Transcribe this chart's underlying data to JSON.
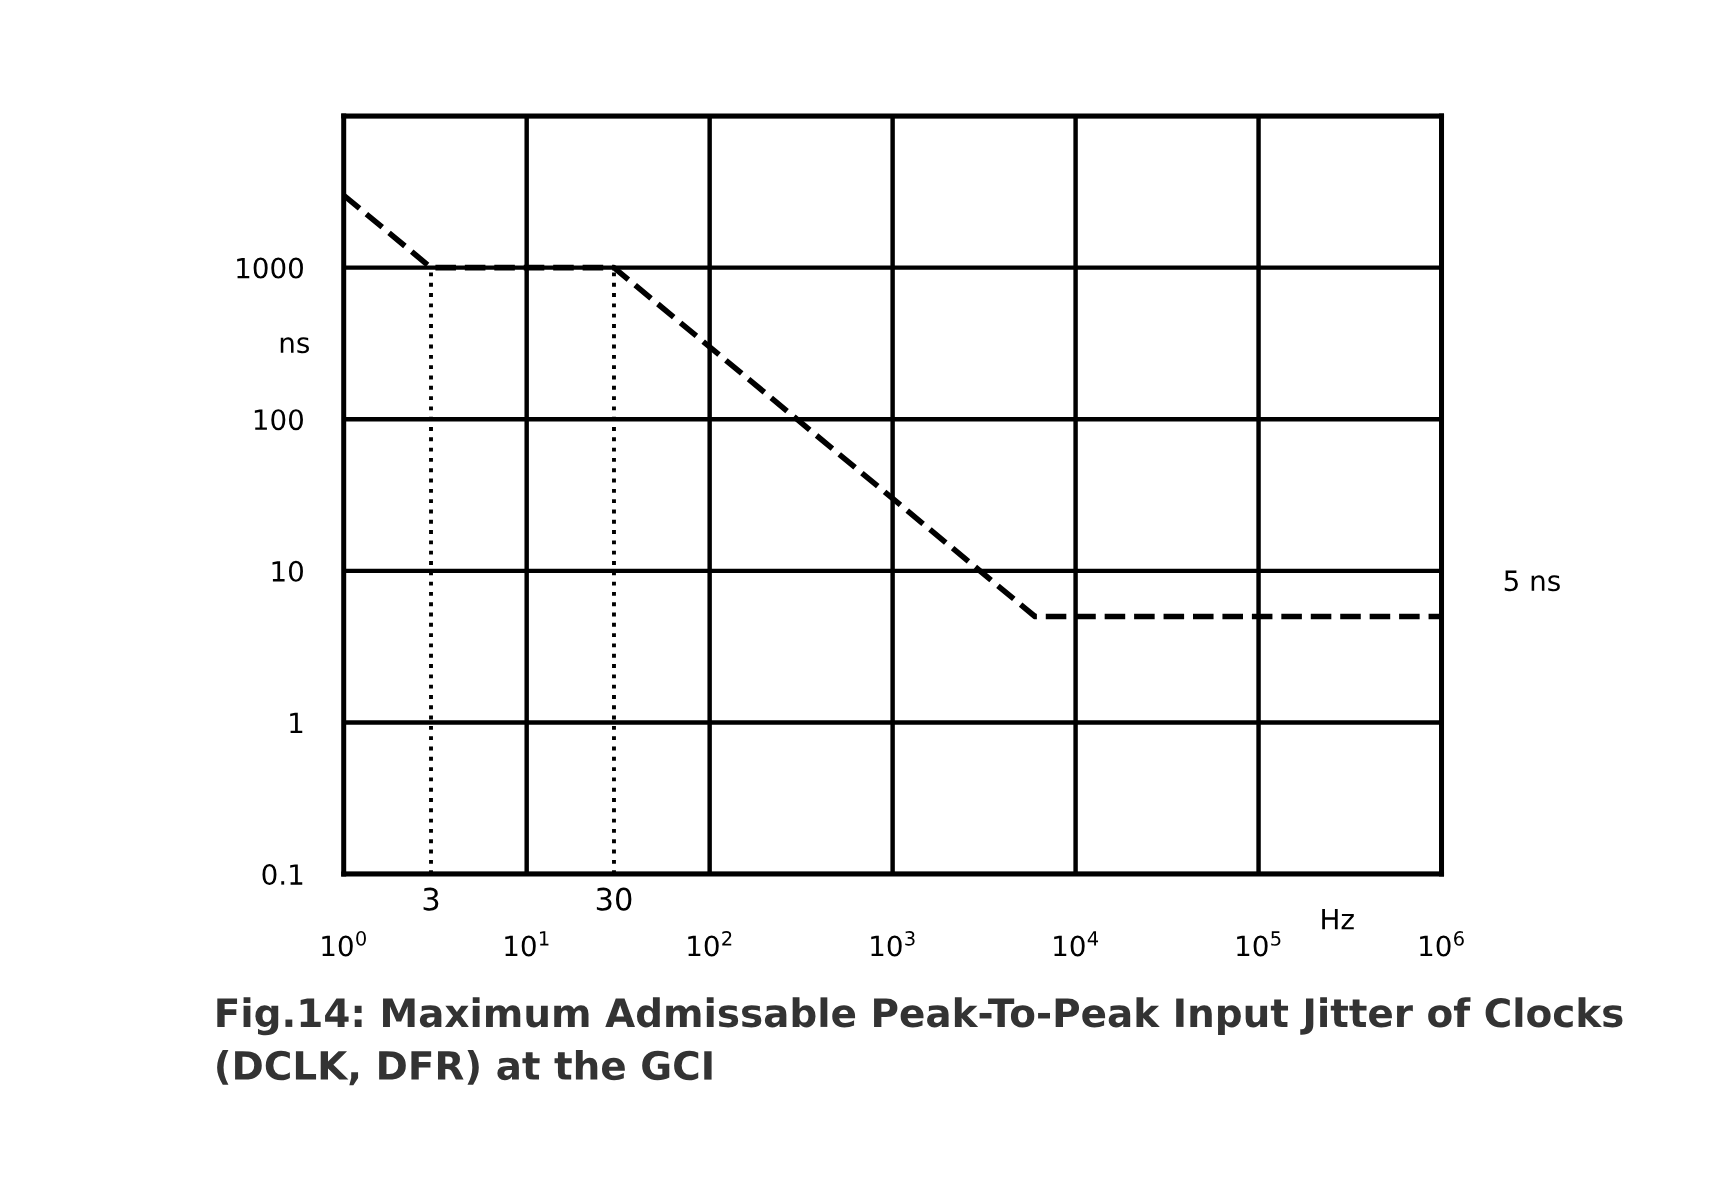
{
  "chart_data": {
    "type": "line",
    "title": "Fig.14: Maximum Admissable Peak-To-Peak Input Jitter of Clocks\n(DCLK, DFR) at the GCI",
    "xlabel": "Hz",
    "ylabel": "ns",
    "log": "xy",
    "grid": true,
    "legend": false,
    "xlim": [
      1,
      1000000
    ],
    "ylim": [
      0.1,
      10000
    ],
    "xticks": [
      {
        "value": 1,
        "label": "10$^{0}$"
      },
      {
        "value": 10,
        "label": "10$^{1}$"
      },
      {
        "value": 100,
        "label": "10$^{2}$"
      },
      {
        "value": 1000,
        "label": "10$^{3}$"
      },
      {
        "value": 10000,
        "label": "10$^{4}$"
      },
      {
        "value": 100000,
        "label": "10$^{5}$"
      },
      {
        "value": 1000000,
        "label": "10$^{6}$"
      }
    ],
    "yticks": [
      0.1,
      1,
      10,
      100,
      1000,
      {
        "value": 10000,
        "label": null
      }
    ],
    "series": [
      {
        "color": "#000000",
        "line_style": "dashed",
        "x": [
          1,
          3,
          30,
          6000,
          1000000
        ],
        "values": [
          3000,
          1000,
          1000,
          5,
          5
        ]
      },
      {
        "color": "#000000",
        "line_style": "dotted",
        "x": [
          3,
          3
        ],
        "values": [
          0.1,
          1000
        ]
      },
      {
        "color": "#000000",
        "line_style": "dotted",
        "x": [
          30,
          30
        ],
        "values": [
          0.1,
          1000
        ]
      }
    ],
    "annotations": [
      {
        "text": "5 ns",
        "x": 1000000,
        "y": 5
      },
      {
        "text": "3",
        "x": 3,
        "y": 0.1
      },
      {
        "text": "30",
        "x": 30,
        "y": 0.1
      }
    ]
  }
}
